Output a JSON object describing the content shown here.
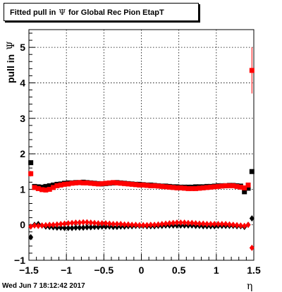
{
  "title": {
    "prefix": "Fitted pull in",
    "symbol": "Ψ",
    "suffix": "for Global Rec Pion EtapT"
  },
  "axis_labels": {
    "y_text": "pull in",
    "y_symbol": "Ψ",
    "x_symbol": "η"
  },
  "datestamp": "Wed Jun  7 18:12:42 2017",
  "colors": {
    "series_black": "#000000",
    "series_red": "#ff0000",
    "grid": "#000000"
  },
  "chart_data": {
    "type": "scatter",
    "xlim": [
      -1.5,
      1.5
    ],
    "ylim": [
      -1,
      5.5
    ],
    "grid": true,
    "x_ticks": [
      -1.5,
      -1,
      -0.5,
      0,
      0.5,
      1,
      1.5
    ],
    "x_tick_labels": [
      "−1.5",
      "−1",
      "−0.5",
      "0",
      "0.5",
      "1",
      "1.5"
    ],
    "y_ticks": [
      -1,
      0,
      1,
      2,
      3,
      4,
      5
    ],
    "y_tick_labels": [
      "−1",
      "0",
      "1",
      "2",
      "3",
      "4",
      "5"
    ],
    "series": [
      {
        "marker": "square",
        "color": "#000000",
        "x": [
          -1.475,
          -1.425,
          -1.375,
          -1.325,
          -1.275,
          -1.225,
          -1.175,
          -1.125,
          -1.075,
          -1.025,
          -0.975,
          -0.925,
          -0.875,
          -0.825,
          -0.775,
          -0.725,
          -0.675,
          -0.625,
          -0.575,
          -0.525,
          -0.475,
          -0.425,
          -0.375,
          -0.325,
          -0.275,
          -0.225,
          -0.175,
          -0.125,
          -0.075,
          -0.025,
          0.025,
          0.075,
          0.125,
          0.175,
          0.225,
          0.275,
          0.325,
          0.375,
          0.425,
          0.475,
          0.525,
          0.575,
          0.625,
          0.675,
          0.725,
          0.775,
          0.825,
          0.875,
          0.925,
          0.975,
          1.025,
          1.075,
          1.125,
          1.175,
          1.225,
          1.275,
          1.325,
          1.375,
          1.425,
          1.475
        ],
        "y": [
          1.75,
          1.08,
          1.07,
          1.06,
          1.08,
          1.1,
          1.12,
          1.14,
          1.15,
          1.17,
          1.18,
          1.18,
          1.19,
          1.19,
          1.2,
          1.19,
          1.18,
          1.17,
          1.16,
          1.15,
          1.16,
          1.17,
          1.18,
          1.19,
          1.18,
          1.17,
          1.16,
          1.15,
          1.14,
          1.14,
          1.13,
          1.12,
          1.12,
          1.11,
          1.1,
          1.09,
          1.09,
          1.08,
          1.07,
          1.07,
          1.06,
          1.06,
          1.06,
          1.06,
          1.07,
          1.07,
          1.07,
          1.08,
          1.08,
          1.09,
          1.1,
          1.1,
          1.1,
          1.11,
          1.11,
          1.1,
          1.09,
          0.93,
          1.03,
          1.5
        ]
      },
      {
        "marker": "square",
        "color": "#ff0000",
        "x": [
          -1.475,
          -1.425,
          -1.375,
          -1.325,
          -1.275,
          -1.225,
          -1.175,
          -1.125,
          -1.075,
          -1.025,
          -0.975,
          -0.925,
          -0.875,
          -0.825,
          -0.775,
          -0.725,
          -0.675,
          -0.625,
          -0.575,
          -0.525,
          -0.475,
          -0.425,
          -0.375,
          -0.325,
          -0.275,
          -0.225,
          -0.175,
          -0.125,
          -0.075,
          -0.025,
          0.025,
          0.075,
          0.125,
          0.175,
          0.225,
          0.275,
          0.325,
          0.375,
          0.425,
          0.475,
          0.525,
          0.575,
          0.625,
          0.675,
          0.725,
          0.775,
          0.825,
          0.875,
          0.925,
          0.975,
          1.025,
          1.075,
          1.125,
          1.175,
          1.225,
          1.275,
          1.325,
          1.375,
          1.425,
          1.475
        ],
        "y": [
          1.44,
          1.05,
          1.02,
          0.99,
          0.98,
          1.0,
          1.05,
          1.1,
          1.12,
          1.14,
          1.15,
          1.17,
          1.18,
          1.19,
          1.18,
          1.18,
          1.17,
          1.16,
          1.15,
          1.16,
          1.17,
          1.18,
          1.19,
          1.18,
          1.17,
          1.16,
          1.15,
          1.14,
          1.13,
          1.12,
          1.12,
          1.11,
          1.1,
          1.1,
          1.09,
          1.08,
          1.07,
          1.06,
          1.05,
          1.04,
          1.04,
          1.03,
          1.02,
          1.02,
          1.02,
          1.03,
          1.04,
          1.05,
          1.06,
          1.07,
          1.08,
          1.09,
          1.1,
          1.1,
          1.1,
          1.08,
          1.06,
          1.04,
          1.12,
          4.35
        ],
        "errors": [
          0.08,
          0.03,
          0.03,
          0.03,
          0.03,
          0.03,
          0.03,
          0.03,
          0.03,
          0.03,
          0.03,
          0.03,
          0.03,
          0.03,
          0.03,
          0.03,
          0.03,
          0.03,
          0.03,
          0.03,
          0.03,
          0.03,
          0.03,
          0.03,
          0.03,
          0.03,
          0.03,
          0.03,
          0.03,
          0.03,
          0.03,
          0.03,
          0.03,
          0.03,
          0.03,
          0.03,
          0.03,
          0.03,
          0.03,
          0.03,
          0.03,
          0.03,
          0.03,
          0.03,
          0.03,
          0.03,
          0.03,
          0.03,
          0.03,
          0.03,
          0.03,
          0.03,
          0.03,
          0.03,
          0.03,
          0.03,
          0.03,
          0.03,
          0.05,
          0.65
        ]
      },
      {
        "marker": "diamond",
        "color": "#000000",
        "x": [
          -1.475,
          -1.425,
          -1.375,
          -1.325,
          -1.275,
          -1.225,
          -1.175,
          -1.125,
          -1.075,
          -1.025,
          -0.975,
          -0.925,
          -0.875,
          -0.825,
          -0.775,
          -0.725,
          -0.675,
          -0.625,
          -0.575,
          -0.525,
          -0.475,
          -0.425,
          -0.375,
          -0.325,
          -0.275,
          -0.225,
          -0.175,
          -0.125,
          -0.075,
          -0.025,
          0.025,
          0.075,
          0.125,
          0.175,
          0.225,
          0.275,
          0.325,
          0.375,
          0.425,
          0.475,
          0.525,
          0.575,
          0.625,
          0.675,
          0.725,
          0.775,
          0.825,
          0.875,
          0.925,
          0.975,
          1.025,
          1.075,
          1.125,
          1.175,
          1.225,
          1.275,
          1.325,
          1.375,
          1.425,
          1.475
        ],
        "y": [
          -0.35,
          0.0,
          0.02,
          -0.02,
          -0.05,
          -0.06,
          -0.07,
          -0.08,
          -0.08,
          -0.09,
          -0.09,
          -0.09,
          -0.08,
          -0.08,
          -0.08,
          -0.07,
          -0.07,
          -0.06,
          -0.06,
          -0.05,
          -0.05,
          -0.05,
          -0.06,
          -0.06,
          -0.05,
          -0.05,
          -0.04,
          -0.04,
          -0.03,
          -0.03,
          -0.03,
          -0.04,
          -0.04,
          -0.04,
          -0.03,
          -0.03,
          -0.02,
          -0.02,
          -0.02,
          -0.02,
          -0.02,
          -0.02,
          -0.02,
          -0.02,
          -0.03,
          -0.03,
          -0.04,
          -0.04,
          -0.04,
          -0.04,
          -0.03,
          -0.03,
          -0.03,
          -0.03,
          -0.03,
          -0.04,
          -0.04,
          -0.06,
          0.0,
          0.18
        ]
      },
      {
        "marker": "diamond",
        "color": "#ff0000",
        "x": [
          -1.475,
          -1.425,
          -1.375,
          -1.325,
          -1.275,
          -1.225,
          -1.175,
          -1.125,
          -1.075,
          -1.025,
          -0.975,
          -0.925,
          -0.875,
          -0.825,
          -0.775,
          -0.725,
          -0.675,
          -0.625,
          -0.575,
          -0.525,
          -0.475,
          -0.425,
          -0.375,
          -0.325,
          -0.275,
          -0.225,
          -0.175,
          -0.125,
          -0.075,
          -0.025,
          0.025,
          0.075,
          0.125,
          0.175,
          0.225,
          0.275,
          0.325,
          0.375,
          0.425,
          0.475,
          0.525,
          0.575,
          0.625,
          0.675,
          0.725,
          0.775,
          0.825,
          0.875,
          0.925,
          0.975,
          1.025,
          1.075,
          1.125,
          1.175,
          1.225,
          1.275,
          1.325,
          1.375,
          1.425,
          1.475
        ],
        "y": [
          -0.05,
          -0.02,
          -0.03,
          -0.02,
          -0.01,
          0.0,
          0.0,
          0.01,
          0.02,
          0.03,
          0.04,
          0.05,
          0.06,
          0.06,
          0.07,
          0.07,
          0.06,
          0.05,
          0.04,
          0.04,
          0.04,
          0.03,
          0.02,
          0.02,
          0.02,
          0.01,
          0.01,
          0.0,
          0.0,
          -0.01,
          -0.01,
          -0.01,
          0.0,
          0.0,
          0.01,
          0.02,
          0.03,
          0.04,
          0.05,
          0.06,
          0.06,
          0.06,
          0.05,
          0.05,
          0.04,
          0.03,
          0.03,
          0.02,
          0.02,
          0.02,
          0.02,
          0.02,
          0.02,
          0.01,
          0.0,
          -0.01,
          -0.02,
          -0.03,
          0.0,
          -0.65
        ]
      }
    ]
  }
}
